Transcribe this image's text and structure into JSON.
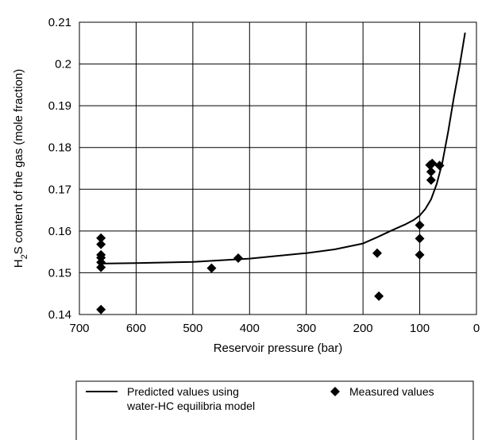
{
  "chart_data": {
    "type": "scatter",
    "xlabel": "Reservoir pressure (bar)",
    "ylabel_parts": [
      "H",
      "2",
      "S content of the gas (mole fraction)"
    ],
    "xlim": [
      700,
      0
    ],
    "ylim": [
      0.14,
      0.21
    ],
    "x_ticks": [
      700,
      600,
      500,
      400,
      300,
      200,
      100,
      0
    ],
    "y_ticks": [
      0.14,
      0.15,
      0.16,
      0.17,
      0.18,
      0.19,
      0.2,
      0.21
    ],
    "x_tick_labels": [
      "700",
      "600",
      "500",
      "400",
      "300",
      "200",
      "100",
      "0"
    ],
    "y_tick_labels": [
      "0.14",
      "0.15",
      "0.16",
      "0.17",
      "0.18",
      "0.19",
      "0.2",
      "0.21"
    ],
    "grid": true,
    "legend_placement": "bottom",
    "series": [
      {
        "name_lines": [
          "Predicted values using",
          "water-HC equilibria model"
        ],
        "kind": "line",
        "color": "#000000",
        "x": [
          665,
          600,
          500,
          400,
          300,
          250,
          200,
          175,
          150,
          125,
          110,
          100,
          90,
          80,
          70,
          60,
          50,
          40,
          30,
          20
        ],
        "y": [
          0.1522,
          0.1523,
          0.1526,
          0.1534,
          0.1547,
          0.1556,
          0.157,
          0.1585,
          0.1601,
          0.1616,
          0.1627,
          0.1637,
          0.1653,
          0.1676,
          0.1713,
          0.1764,
          0.1837,
          0.1918,
          0.1993,
          0.2075
        ]
      },
      {
        "name": "Measured values",
        "kind": "scatter",
        "marker": "diamond",
        "color": "#000000",
        "x": [
          662,
          662,
          662,
          662,
          662,
          662,
          662,
          467,
          420,
          175,
          172,
          100,
          100,
          100,
          82,
          80,
          80,
          78,
          65
        ],
        "y": [
          0.1583,
          0.1568,
          0.1543,
          0.1536,
          0.1525,
          0.1513,
          0.1412,
          0.1511,
          0.1535,
          0.1547,
          0.1444,
          0.1614,
          0.1582,
          0.1543,
          0.1758,
          0.1742,
          0.1722,
          0.1762,
          0.1757
        ]
      }
    ]
  }
}
